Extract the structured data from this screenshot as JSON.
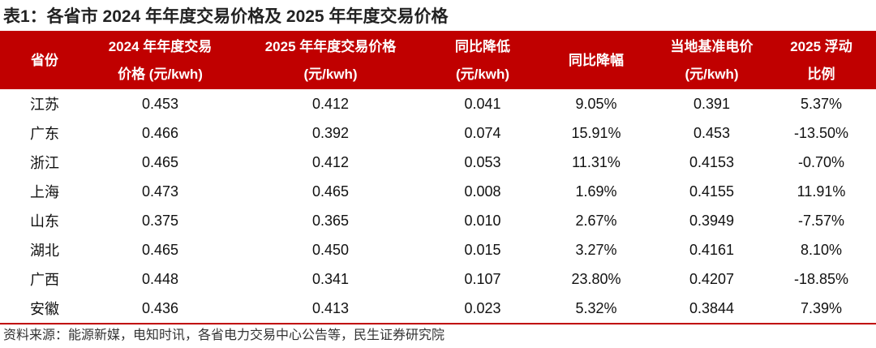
{
  "title": "表1：各省市 2024 年年度交易价格及 2025 年年度交易价格",
  "colors": {
    "header_bg": "#c00000",
    "header_text": "#ffffff",
    "rule": "#c00000"
  },
  "header": {
    "province": "省份",
    "price2024_line1": "2024 年年度交易",
    "price2024_line2": "价格 (元/kwh)",
    "price2025_line1": "2025 年年度交易价格",
    "price2025_line2": "(元/kwh)",
    "yoy_drop_line1": "同比降低",
    "yoy_drop_line2": "(元/kwh)",
    "yoy_pct": "同比降幅",
    "benchmark_line1": "当地基准电价",
    "benchmark_line2": "(元/kwh)",
    "float_line1": "2025 浮动",
    "float_line2": "比例"
  },
  "rows": [
    {
      "province": "江苏",
      "p2024": "0.453",
      "p2025": "0.412",
      "drop": "0.041",
      "drop_pct": "9.05%",
      "benchmark": "0.391",
      "float": "5.37%"
    },
    {
      "province": "广东",
      "p2024": "0.466",
      "p2025": "0.392",
      "drop": "0.074",
      "drop_pct": "15.91%",
      "benchmark": "0.453",
      "float": "-13.50%"
    },
    {
      "province": "浙江",
      "p2024": "0.465",
      "p2025": "0.412",
      "drop": "0.053",
      "drop_pct": "11.31%",
      "benchmark": "0.4153",
      "float": "-0.70%"
    },
    {
      "province": "上海",
      "p2024": "0.473",
      "p2025": "0.465",
      "drop": "0.008",
      "drop_pct": "1.69%",
      "benchmark": "0.4155",
      "float": "11.91%"
    },
    {
      "province": "山东",
      "p2024": "0.375",
      "p2025": "0.365",
      "drop": "0.010",
      "drop_pct": "2.67%",
      "benchmark": "0.3949",
      "float": "-7.57%"
    },
    {
      "province": "湖北",
      "p2024": "0.465",
      "p2025": "0.450",
      "drop": "0.015",
      "drop_pct": "3.27%",
      "benchmark": "0.4161",
      "float": "8.10%"
    },
    {
      "province": "广西",
      "p2024": "0.448",
      "p2025": "0.341",
      "drop": "0.107",
      "drop_pct": "23.80%",
      "benchmark": "0.4207",
      "float": "-18.85%"
    },
    {
      "province": "安徽",
      "p2024": "0.436",
      "p2025": "0.413",
      "drop": "0.023",
      "drop_pct": "5.32%",
      "benchmark": "0.3844",
      "float": "7.39%"
    }
  ],
  "source": "资料来源：能源新媒，电知时讯，各省电力交易中心公告等，民生证券研究院"
}
